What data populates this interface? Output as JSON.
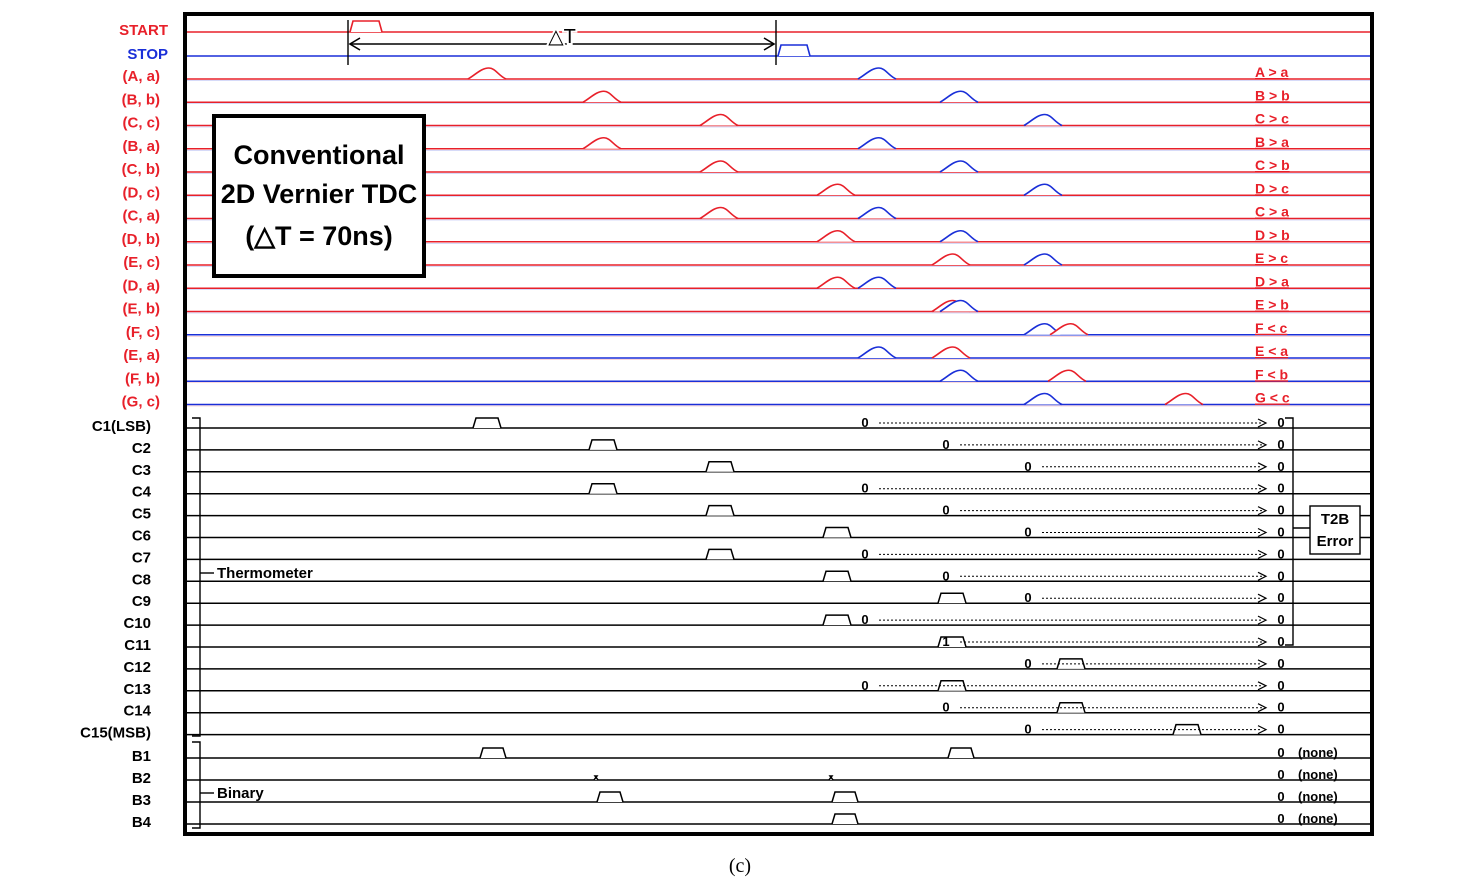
{
  "title_box": {
    "line1": "Conventional",
    "line2": "2D Vernier TDC",
    "line3": "(△T = 70ns)"
  },
  "delta_label": "△T",
  "caption": "(c)",
  "group_labels": {
    "thermometer": "Thermometer",
    "binary": "Binary"
  },
  "error_box": {
    "line1": "T2B",
    "line2": "Error"
  },
  "colors": {
    "red": "#e8202a",
    "blue": "#1a2fd8",
    "black": "#000000"
  },
  "start_stop": [
    {
      "label": "START",
      "color": "#e8202a"
    },
    {
      "label": "STOP",
      "color": "#1a2fd8"
    }
  ],
  "comparators": [
    {
      "name": "(A, a)",
      "relation": "A > a"
    },
    {
      "name": "(B, b)",
      "relation": "B > b"
    },
    {
      "name": "(C, c)",
      "relation": "C > c"
    },
    {
      "name": "(B, a)",
      "relation": "B > a"
    },
    {
      "name": "(C, b)",
      "relation": "C > b"
    },
    {
      "name": "(D, c)",
      "relation": "D > c"
    },
    {
      "name": "(C, a)",
      "relation": "C > a"
    },
    {
      "name": "(D, b)",
      "relation": "D > b"
    },
    {
      "name": "(E, c)",
      "relation": "E > c"
    },
    {
      "name": "(D, a)",
      "relation": "D > a"
    },
    {
      "name": "(E, b)",
      "relation": "E > b"
    },
    {
      "name": "(F, c)",
      "relation": "F < c"
    },
    {
      "name": "(E, a)",
      "relation": "E < a"
    },
    {
      "name": "(F, b)",
      "relation": "F < b"
    },
    {
      "name": "(G, c)",
      "relation": "G < c"
    }
  ],
  "thermometer_codes": [
    {
      "label": "C1(LSB)",
      "sample": "0",
      "final": "0"
    },
    {
      "label": "C2",
      "sample": "0",
      "final": "0"
    },
    {
      "label": "C3",
      "sample": "0",
      "final": "0"
    },
    {
      "label": "C4",
      "sample": "0",
      "final": "0"
    },
    {
      "label": "C5",
      "sample": "0",
      "final": "0"
    },
    {
      "label": "C6",
      "sample": "0",
      "final": "0"
    },
    {
      "label": "C7",
      "sample": "0",
      "final": "0"
    },
    {
      "label": "C8",
      "sample": "0",
      "final": "0"
    },
    {
      "label": "C9",
      "sample": "0",
      "final": "0"
    },
    {
      "label": "C10",
      "sample": "0",
      "final": "0"
    },
    {
      "label": "C11",
      "sample": "1",
      "final": "0"
    },
    {
      "label": "C12",
      "sample": "0",
      "final": "0"
    },
    {
      "label": "C13",
      "sample": "0",
      "final": "0"
    },
    {
      "label": "C14",
      "sample": "0",
      "final": "0"
    },
    {
      "label": "C15(MSB)",
      "sample": "0",
      "final": "0"
    }
  ],
  "binary_codes": [
    {
      "label": "B1",
      "final": "0",
      "note": "(none)"
    },
    {
      "label": "B2",
      "final": "0",
      "note": "(none)"
    },
    {
      "label": "B3",
      "final": "0",
      "note": "(none)"
    },
    {
      "label": "B4",
      "final": "0",
      "note": "(none)"
    }
  ]
}
